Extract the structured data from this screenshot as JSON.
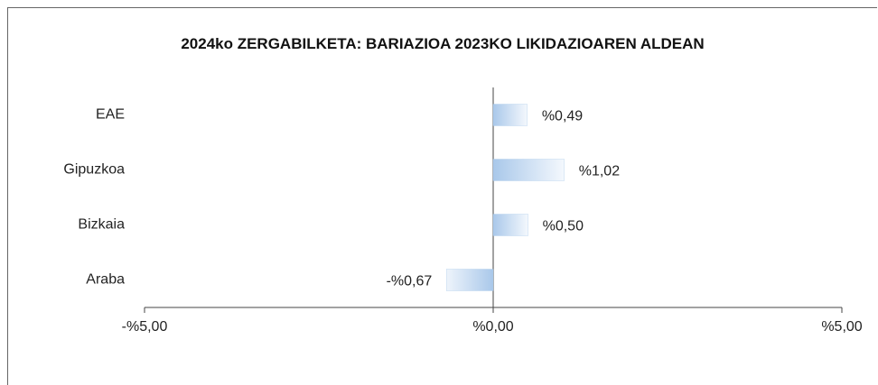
{
  "chart_data": {
    "type": "hbar",
    "title": "2024ko ZERGABILKETA: BARIAZIOA 2023KO LIKIDAZIOAREN ALDEAN",
    "categories": [
      "EAE",
      "Gipuzkoa",
      "Bizkaia",
      "Araba"
    ],
    "values": [
      0.49,
      1.02,
      0.5,
      -0.67
    ],
    "value_labels": [
      "%0,49",
      "%1,02",
      "%0,50",
      "-%0,67"
    ],
    "color": "#9dc3e6",
    "xlim": [
      -5,
      5
    ],
    "xticks": [
      {
        "value": -5,
        "label": "-%5,00"
      },
      {
        "value": 0,
        "label": "%0,00"
      },
      {
        "value": 5,
        "label": "%5,00"
      }
    ]
  }
}
